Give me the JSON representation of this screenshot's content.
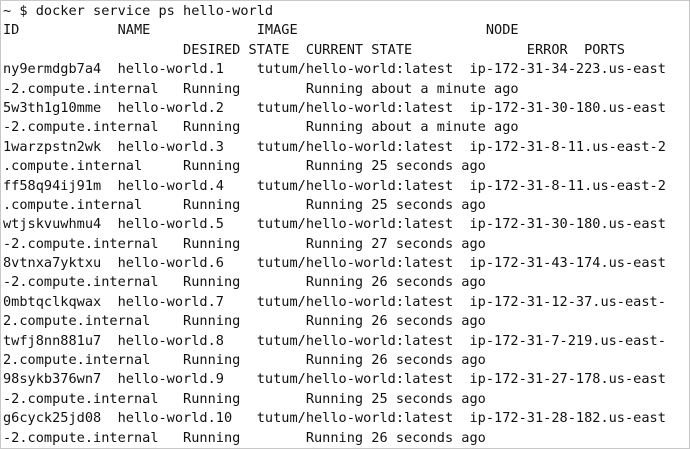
{
  "terminal": {
    "lines": [
      "~ $ docker service ps hello-world",
      "ID            NAME             IMAGE                       NODE",
      "                      DESIRED STATE  CURRENT STATE              ERROR  PORTS",
      "ny9ermdgb7a4  hello-world.1    tutum/hello-world:latest  ip-172-31-34-223.us-east",
      "-2.compute.internal   Running        Running about a minute ago",
      "5w3th1g10mme  hello-world.2    tutum/hello-world:latest  ip-172-31-30-180.us-east",
      "-2.compute.internal   Running        Running about a minute ago",
      "1warzpstn2wk  hello-world.3    tutum/hello-world:latest  ip-172-31-8-11.us-east-2",
      ".compute.internal     Running        Running 25 seconds ago",
      "ff58q94ij91m  hello-world.4    tutum/hello-world:latest  ip-172-31-8-11.us-east-2",
      ".compute.internal     Running        Running 25 seconds ago",
      "wtjskvuwhmu4  hello-world.5    tutum/hello-world:latest  ip-172-31-30-180.us-east",
      "-2.compute.internal   Running        Running 27 seconds ago",
      "8vtnxa7yktxu  hello-world.6    tutum/hello-world:latest  ip-172-31-43-174.us-east",
      "-2.compute.internal   Running        Running 26 seconds ago",
      "0mbtqclkqwax  hello-world.7    tutum/hello-world:latest  ip-172-31-12-37.us-east-",
      "2.compute.internal    Running        Running 26 seconds ago",
      "twfj8nn881u7  hello-world.8    tutum/hello-world:latest  ip-172-31-7-219.us-east-",
      "2.compute.internal    Running        Running 26 seconds ago",
      "98sykb376wn7  hello-world.9    tutum/hello-world:latest  ip-172-31-27-178.us-east",
      "-2.compute.internal   Running        Running 25 seconds ago",
      "g6cyck25jd08  hello-world.10   tutum/hello-world:latest  ip-172-31-28-182.us-east",
      "-2.compute.internal   Running        Running 26 seconds ago",
      "~ $ "
    ]
  }
}
